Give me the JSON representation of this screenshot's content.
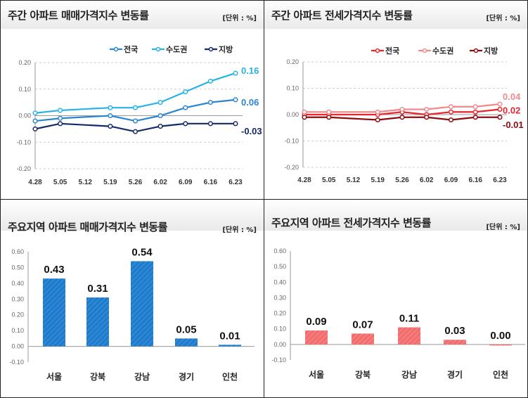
{
  "chart_data": [
    {
      "type": "line",
      "title": "주간 아파트 매매가격지수 변동률",
      "unit": "[단위 : %]",
      "categories": [
        "4.28",
        "5.05",
        "5.12",
        "5.19",
        "5.26",
        "6.02",
        "6.09",
        "6.16",
        "6.23"
      ],
      "ylim": [
        -0.2,
        0.2
      ],
      "yticks": [
        "0.20",
        "0.10",
        "0.00",
        "-0.10",
        "-0.20"
      ],
      "grid": true,
      "legend_position": "top-right",
      "series": [
        {
          "name": "전국",
          "color": "#2b86d1",
          "values": [
            -0.02,
            -0.01,
            null,
            0.0,
            -0.02,
            0.0,
            0.03,
            0.05,
            0.06
          ],
          "end_label": "0.06"
        },
        {
          "name": "수도권",
          "color": "#27b3e6",
          "values": [
            0.01,
            0.02,
            null,
            0.03,
            0.03,
            0.05,
            0.09,
            0.13,
            0.16
          ],
          "end_label": "0.16"
        },
        {
          "name": "지방",
          "color": "#142a6b",
          "values": [
            -0.05,
            -0.03,
            null,
            -0.04,
            -0.06,
            -0.04,
            -0.03,
            -0.03,
            -0.03
          ],
          "end_label": "-0.03"
        }
      ]
    },
    {
      "type": "line",
      "title": "주간 아파트 전세가격지수 변동률",
      "unit": "[단위 : %]",
      "categories": [
        "4.28",
        "5.05",
        "5.12",
        "5.19",
        "5.26",
        "6.02",
        "6.09",
        "6.16",
        "6.23"
      ],
      "ylim": [
        -0.2,
        0.2
      ],
      "yticks": [
        "0.20",
        "0.10",
        "0.00",
        "-0.10",
        "-0.20"
      ],
      "grid": true,
      "legend_position": "top-right",
      "series": [
        {
          "name": "전국",
          "color": "#e8262c",
          "values": [
            0.0,
            0.0,
            null,
            0.0,
            0.01,
            0.0,
            0.01,
            0.01,
            0.02
          ],
          "end_label": "0.02"
        },
        {
          "name": "수도권",
          "color": "#f08a8c",
          "values": [
            0.01,
            0.01,
            null,
            0.01,
            0.02,
            0.02,
            0.03,
            0.03,
            0.04
          ],
          "end_label": "0.04"
        },
        {
          "name": "지방",
          "color": "#8b0c10",
          "values": [
            -0.01,
            -0.01,
            null,
            -0.02,
            -0.01,
            -0.01,
            -0.02,
            -0.01,
            -0.01
          ],
          "end_label": "-0.01"
        }
      ]
    },
    {
      "type": "bar",
      "title": "주요지역 아파트 매매가격지수 변동률",
      "unit": "[단위 : %]",
      "categories": [
        "서울",
        "강북",
        "강남",
        "경기",
        "인천"
      ],
      "values": [
        0.43,
        0.31,
        0.54,
        0.05,
        0.01
      ],
      "labels": [
        "0.43",
        "0.31",
        "0.54",
        "0.05",
        "0.01"
      ],
      "ylim": [
        -0.1,
        0.6
      ],
      "yticks": [
        "0.60",
        "0.50",
        "0.40",
        "0.30",
        "0.20",
        "0.10",
        "0.00",
        "-0.10"
      ],
      "color": "#1f7ccc"
    },
    {
      "type": "bar",
      "title": "주요지역 아파트 전세가격지수 변동률",
      "unit": "[단위 : %]",
      "categories": [
        "서울",
        "강북",
        "강남",
        "경기",
        "인천"
      ],
      "values": [
        0.09,
        0.07,
        0.11,
        0.03,
        0.0
      ],
      "labels": [
        "0.09",
        "0.07",
        "0.11",
        "0.03",
        "0.00"
      ],
      "ylim": [
        -0.1,
        0.6
      ],
      "yticks": [
        "0.60",
        "0.50",
        "0.40",
        "0.30",
        "0.20",
        "0.10",
        "0.00",
        "-0.10"
      ],
      "color": "#f26d6d"
    }
  ]
}
